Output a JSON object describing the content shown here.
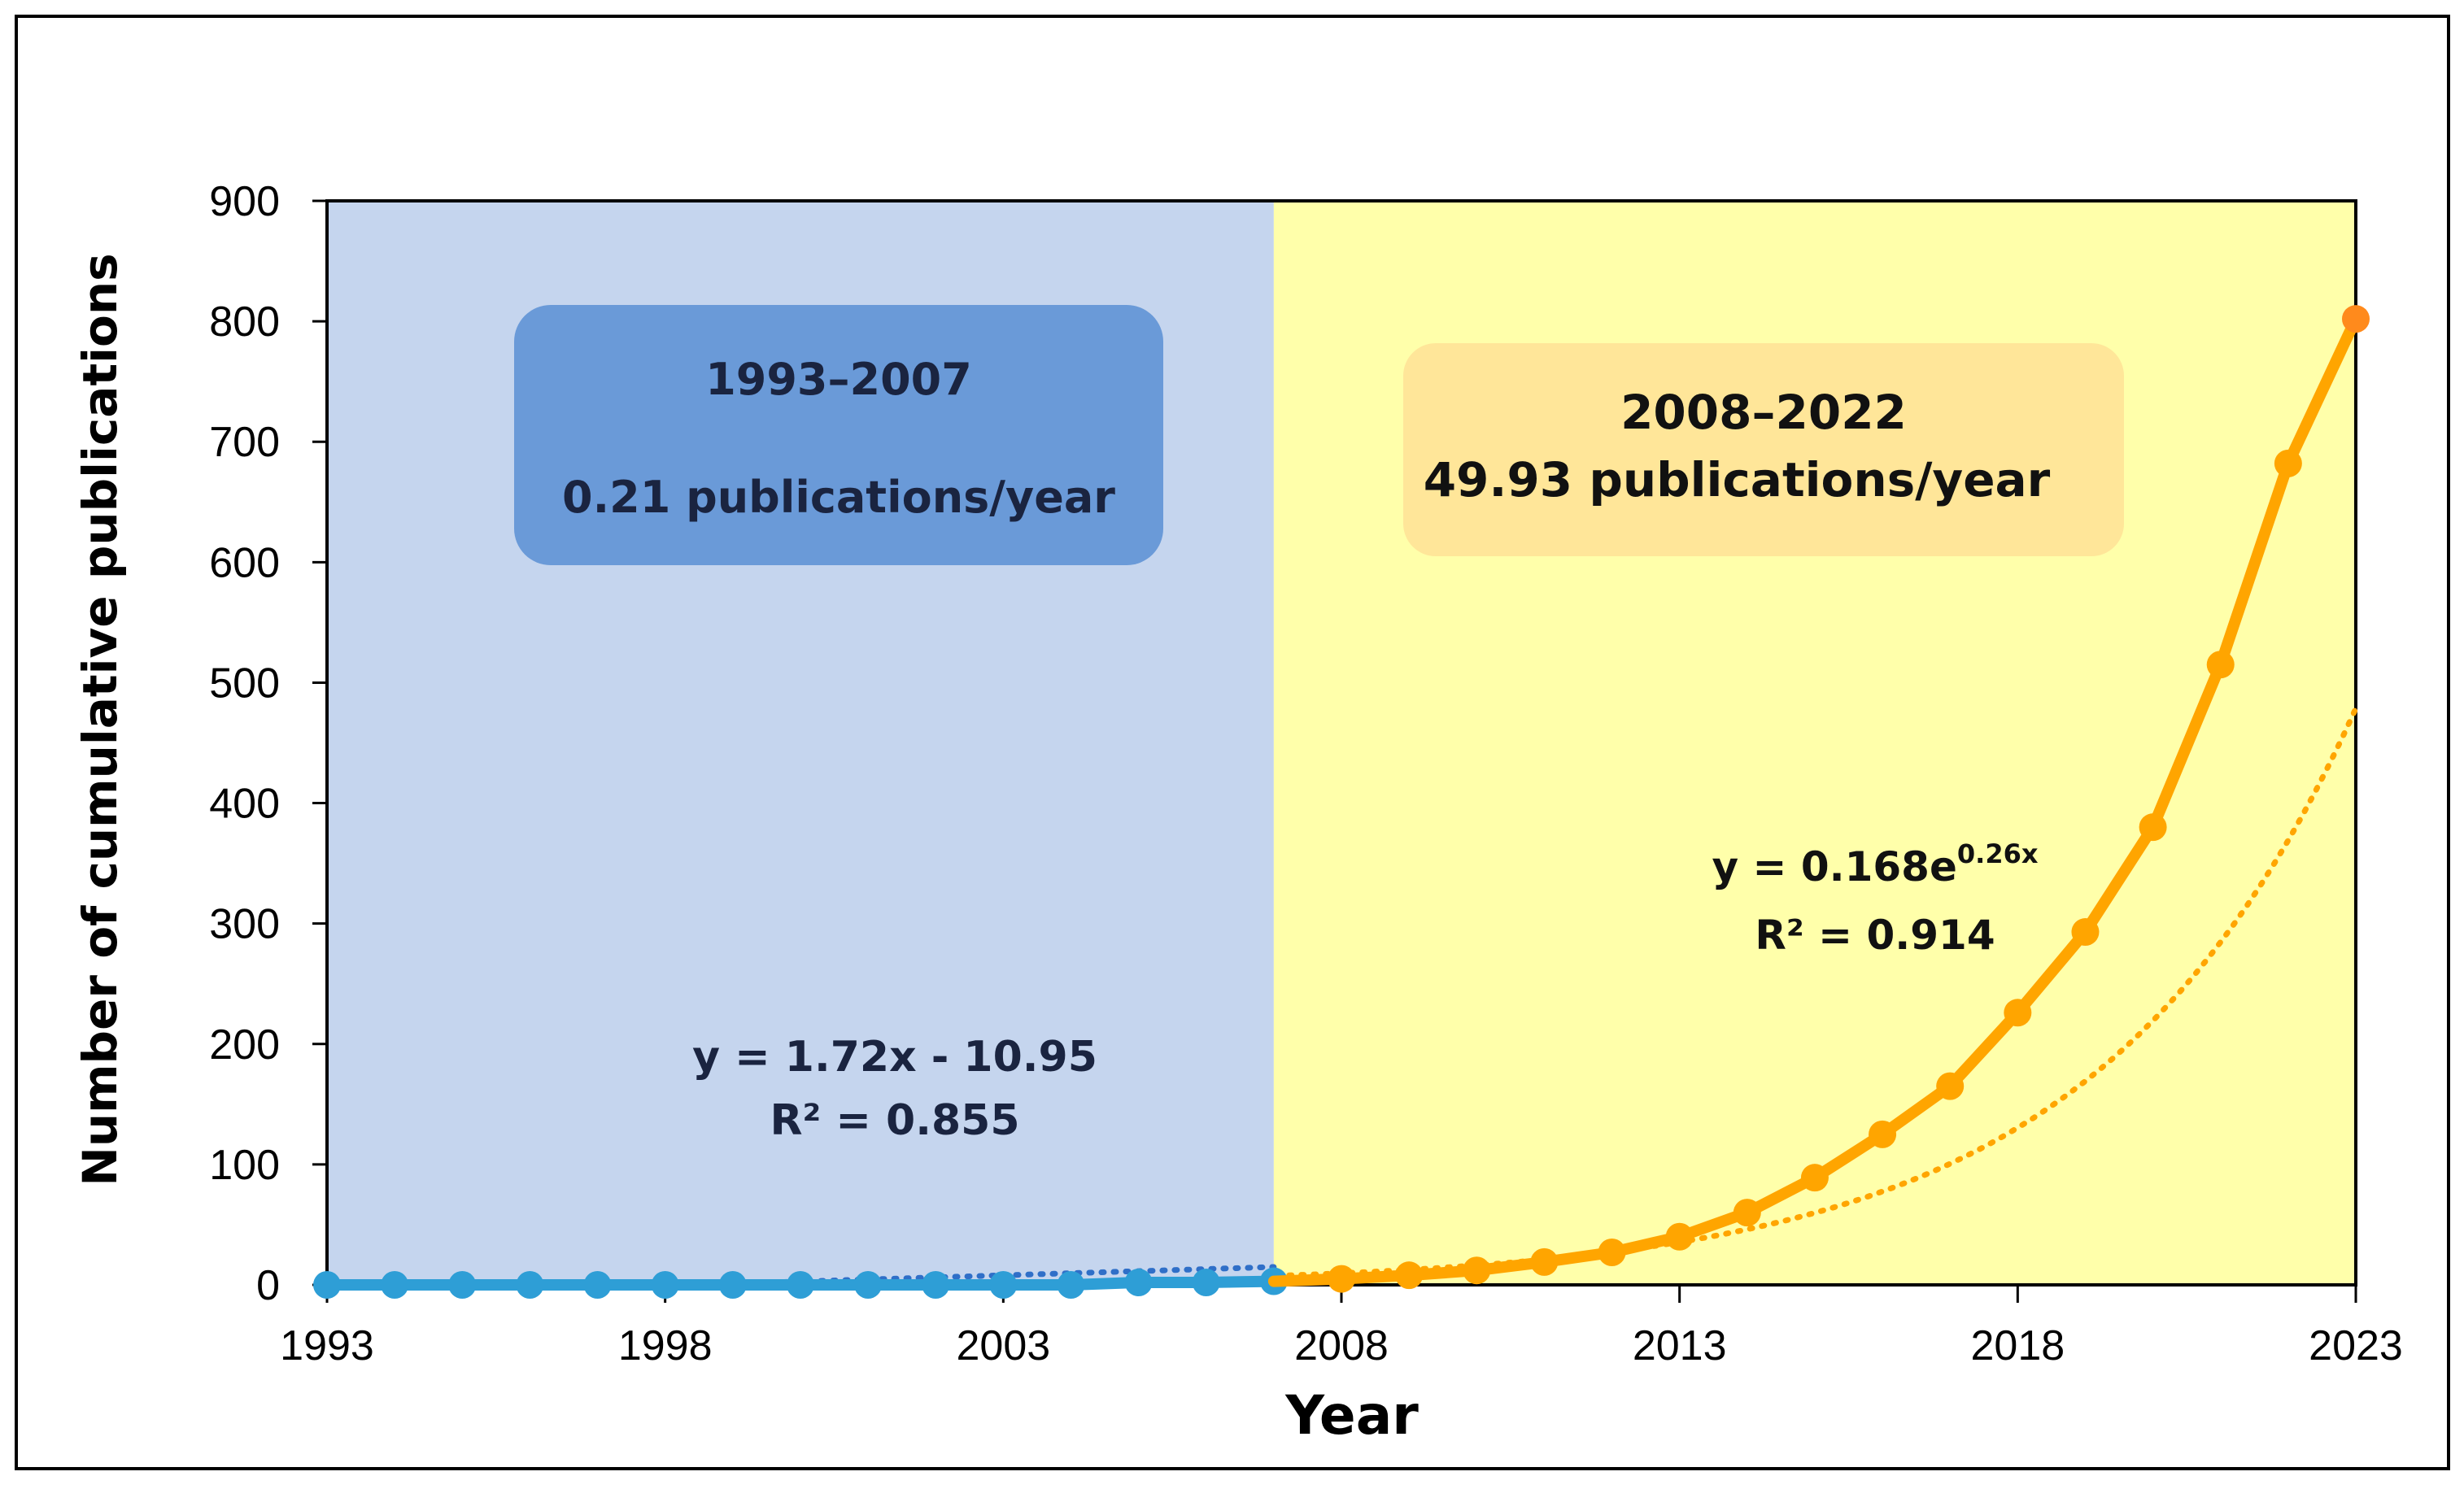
{
  "chart_data": {
    "type": "line",
    "xlabel": "Year",
    "ylabel": "Number of cumulative publications",
    "xlim": [
      1993,
      2023
    ],
    "ylim": [
      0,
      900
    ],
    "x_ticks": [
      "1993",
      "1998",
      "2003",
      "2008",
      "2013",
      "2018",
      "2023"
    ],
    "y_ticks": [
      "0",
      "100",
      "200",
      "300",
      "400",
      "500",
      "600",
      "700",
      "800",
      "900"
    ],
    "grid": false,
    "periods": [
      {
        "name": "1993–2007",
        "rate": "0.21 publications/year",
        "start": 1993,
        "end": 2007,
        "color": "#c5d5ee",
        "box_color": "#6a9ad8"
      },
      {
        "name": "2008–2022",
        "rate": "49.93 publications/year",
        "start": 2007,
        "end": 2023,
        "color": "#ffffaa",
        "box_color": "#ffe699"
      }
    ],
    "series": [
      {
        "name": "1993–2007",
        "color": "#2e9ed6",
        "x": [
          1993,
          1994,
          1995,
          1996,
          1997,
          1998,
          1999,
          2000,
          2001,
          2002,
          2003,
          2004,
          2005,
          2006,
          2007
        ],
        "values": [
          0,
          0,
          0,
          0,
          0,
          0,
          0,
          0,
          0,
          0,
          0,
          0,
          2,
          2,
          3
        ]
      },
      {
        "name": "2008–2022",
        "color": "#ffa500",
        "x": [
          2007,
          2008,
          2009,
          2010,
          2011,
          2012,
          2013,
          2014,
          2015,
          2016,
          2017,
          2018,
          2019,
          2020,
          2021,
          2022,
          2023
        ],
        "values": [
          3,
          5,
          8,
          12,
          19,
          27,
          40,
          60,
          89,
          125,
          165,
          226,
          293,
          380,
          515,
          682,
          802
        ]
      }
    ],
    "trendlines": [
      {
        "type": "linear",
        "color": "#2f6fc8",
        "slope": 1.72,
        "intercept": -10.95,
        "x_from": 1993,
        "x_to": 2007,
        "equation": "y = 1.72x - 10.95",
        "r2": "R² = 0.855"
      },
      {
        "type": "exponential",
        "color": "#ffa500",
        "a": 0.168,
        "b": 0.26,
        "x_from": 1993,
        "x_to": 2023,
        "equation_base": "y = 0.168e",
        "equation_exp": "0.26x",
        "r2": "R² = 0.914"
      }
    ]
  }
}
